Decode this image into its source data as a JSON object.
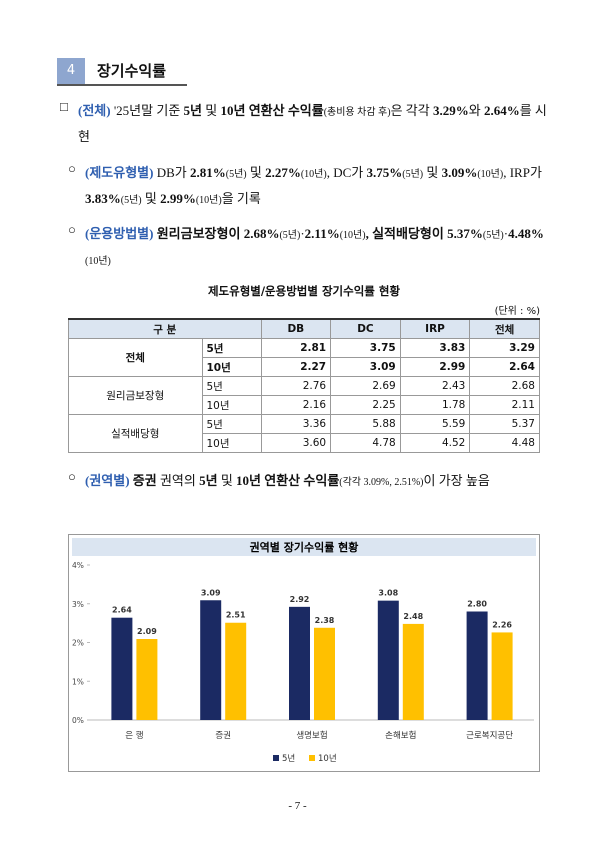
{
  "section": {
    "number": "4",
    "title": "장기수익률"
  },
  "paragraphs": [
    {
      "marker": "□",
      "segments": [
        "(전체)",
        " '25년말 기준 ",
        "5년",
        " 및 ",
        "10년",
        " 연환산 수익률",
        "(총비용 차감 후)",
        "은 각각 ",
        "3.29%",
        "와 ",
        "2.64%",
        "를 시현"
      ]
    },
    {
      "marker": "○",
      "segments": [
        "(제도유형별)",
        " DB가 ",
        "2.81%",
        "(5년)",
        " 및 ",
        "2.27%",
        "(10년)",
        ", DC가 ",
        "3.75%",
        "(5년)",
        " 및 ",
        "3.09%",
        "(10년)",
        ", IRP가 ",
        "3.83%",
        "(5년)",
        " 및 ",
        "2.99%",
        "(10년)",
        "을 기록"
      ]
    },
    {
      "marker": "○",
      "segments": [
        "(운용방법별)",
        " 원리금보장형이 ",
        "2.68%",
        "(5년)",
        "·",
        "2.11%",
        "(10년)",
        ", 실적배당형이 ",
        "5.37%",
        "(5년)",
        "·",
        "4.48%",
        "(10년)"
      ]
    },
    {
      "marker": "○",
      "segments": [
        "(권역별)",
        " 증권",
        " 권역의 ",
        "5년",
        " 및 ",
        "10년",
        " 연환산 수익률",
        "(각각 3.09%, 2.51%)",
        "이 가장 높음"
      ]
    }
  ],
  "table": {
    "caption": "제도유형별/운용방법별 장기수익률 현황",
    "unit": "(단위 : %)",
    "header": [
      "구 분",
      "DB",
      "DC",
      "IRP",
      "전체"
    ],
    "groups": [
      {
        "label": "전체",
        "rows": [
          {
            "period": "5년",
            "cells": [
              "2.81",
              "3.75",
              "3.83",
              "3.29"
            ]
          },
          {
            "period": "10년",
            "cells": [
              "2.27",
              "3.09",
              "2.99",
              "2.64"
            ]
          }
        ]
      },
      {
        "label": "원리금보장형",
        "rows": [
          {
            "period": "5년",
            "cells": [
              "2.76",
              "2.69",
              "2.43",
              "2.68"
            ]
          },
          {
            "period": "10년",
            "cells": [
              "2.16",
              "2.25",
              "1.78",
              "2.11"
            ]
          }
        ]
      },
      {
        "label": "실적배당형",
        "rows": [
          {
            "period": "5년",
            "cells": [
              "3.36",
              "5.88",
              "5.59",
              "5.37"
            ]
          },
          {
            "period": "10년",
            "cells": [
              "3.60",
              "4.78",
              "4.52",
              "4.48"
            ]
          }
        ]
      }
    ]
  },
  "chart_data": {
    "type": "bar",
    "title": "권역별 장기수익률 현황",
    "categories": [
      "은 행",
      "증권",
      "생명보험",
      "손해보험",
      "근로복지공단"
    ],
    "series": [
      {
        "name": "5년",
        "color": "#1b2a63",
        "values": [
          2.64,
          3.09,
          2.92,
          3.08,
          2.8
        ],
        "value_labels": [
          "2.64",
          "3.09",
          "2.92",
          "3.08",
          "2.80"
        ]
      },
      {
        "name": "10년",
        "color": "#ffc000",
        "values": [
          2.09,
          2.51,
          2.38,
          2.48,
          2.26
        ],
        "value_labels": [
          "2.09",
          "2.51",
          "2.38",
          "2.48",
          "2.26"
        ]
      }
    ],
    "ylim": [
      0,
      4
    ],
    "yticks": [
      {
        "value": 0,
        "label": "0%"
      },
      {
        "value": 1,
        "label": "1%"
      },
      {
        "value": 2,
        "label": "2%"
      },
      {
        "value": 3,
        "label": "3%"
      },
      {
        "value": 4,
        "label": "4%"
      }
    ],
    "grid": false
  },
  "page_number": "- 7 -"
}
